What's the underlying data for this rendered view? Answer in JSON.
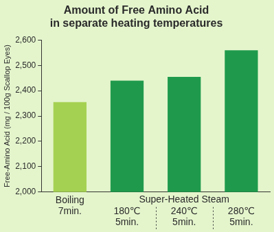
{
  "chart_data": {
    "type": "bar",
    "title": "Amount of Free Amino Acid",
    "subtitle": "in separate heating temperatures",
    "y_label": "Free-Amino Acid (mg / 100g Scallop Eyes)",
    "categories": [
      "Boiling\n7min.",
      "180℃\n5min.",
      "240℃\n5min.",
      "280℃\n5min."
    ],
    "values": [
      2355,
      2440,
      2455,
      2560
    ],
    "colors": [
      "#a5d152",
      "#1f9a4c",
      "#1f9a4c",
      "#1f9a4c"
    ],
    "annotations": [
      {
        "text": "Super-Heated Steam",
        "from": "180℃\n5min.",
        "to": "280℃\n5min."
      }
    ],
    "ylim": [
      2000,
      2600
    ],
    "yticks": [
      {
        "value": 2000,
        "label": "2,000"
      },
      {
        "value": 2100,
        "label": "2,100"
      },
      {
        "value": 2200,
        "label": "2,200"
      },
      {
        "value": 2300,
        "label": "2,300"
      },
      {
        "value": 2400,
        "label": "2,400"
      },
      {
        "value": 2500,
        "label": "2,500"
      },
      {
        "value": 2600,
        "label": "2,600"
      }
    ],
    "grid": false
  }
}
